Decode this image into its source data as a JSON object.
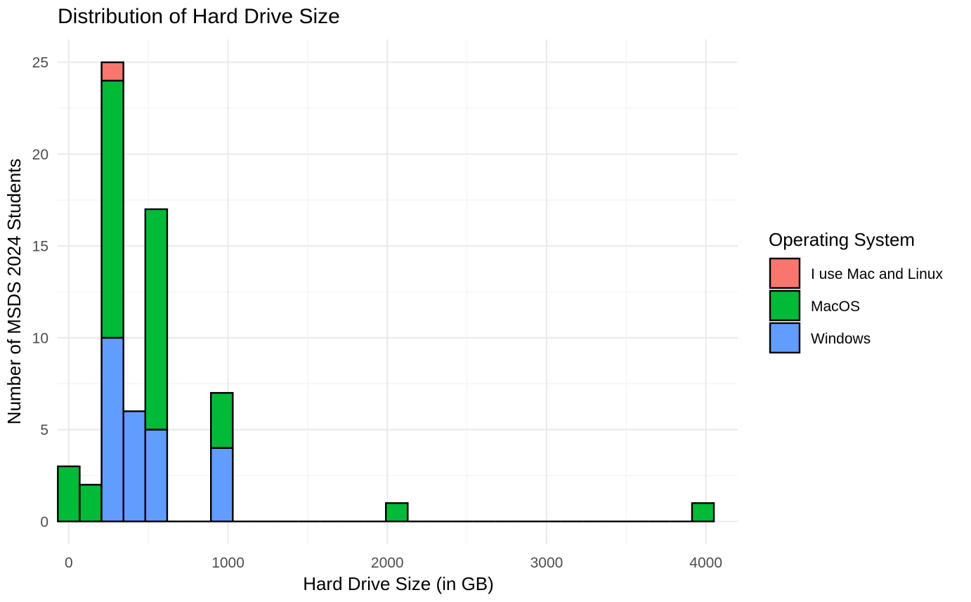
{
  "chart_data": {
    "type": "bar",
    "subtype": "stacked-histogram",
    "title": "Distribution of Hard Drive Size",
    "xlabel": "Hard Drive Size (in GB)",
    "ylabel": "Number of MSDS 2024 Students",
    "xlim": [
      -70,
      4200
    ],
    "ylim": [
      -1.25,
      26.25
    ],
    "x_ticks": [
      0,
      1000,
      2000,
      3000,
      4000
    ],
    "x_tick_labels": [
      "0",
      "1000",
      "2000",
      "3000",
      "4000"
    ],
    "y_ticks": [
      0,
      5,
      10,
      15,
      20,
      25
    ],
    "y_tick_labels": [
      "0",
      "5",
      "10",
      "15",
      "20",
      "25"
    ],
    "bin_width": 137.3,
    "bin_centers": [
      0,
      137.3,
      274.6,
      411.9,
      549.2,
      686.5,
      823.8,
      961.1,
      1098.4,
      1235.7,
      1373,
      1510.3,
      1647.6,
      1784.9,
      1922.2,
      2059.5,
      2196.8,
      2334.1,
      2471.4,
      2608.7,
      2746,
      2883.3,
      3020.6,
      3157.9,
      3295.2,
      3432.5,
      3569.8,
      3707.1,
      3844.4,
      3981.7
    ],
    "grid": true,
    "legend_title": "Operating System",
    "legend_position": "right",
    "series": [
      {
        "name": "I use Mac and Linux",
        "color": "#F8766D",
        "values": [
          0,
          0,
          1,
          0,
          0,
          0,
          0,
          0,
          0,
          0,
          0,
          0,
          0,
          0,
          0,
          0,
          0,
          0,
          0,
          0,
          0,
          0,
          0,
          0,
          0,
          0,
          0,
          0,
          0,
          0
        ]
      },
      {
        "name": "MacOS",
        "color": "#00BA38",
        "values": [
          3,
          2,
          14,
          0,
          12,
          0,
          0,
          3,
          0,
          0,
          0,
          0,
          0,
          0,
          0,
          1,
          0,
          0,
          0,
          0,
          0,
          0,
          0,
          0,
          0,
          0,
          0,
          0,
          0,
          1
        ]
      },
      {
        "name": "Windows",
        "color": "#619CFF",
        "values": [
          0,
          0,
          10,
          6,
          5,
          0,
          0,
          4,
          0,
          0,
          0,
          0,
          0,
          0,
          0,
          0,
          0,
          0,
          0,
          0,
          0,
          0,
          0,
          0,
          0,
          0,
          0,
          0,
          0,
          0
        ]
      }
    ]
  }
}
